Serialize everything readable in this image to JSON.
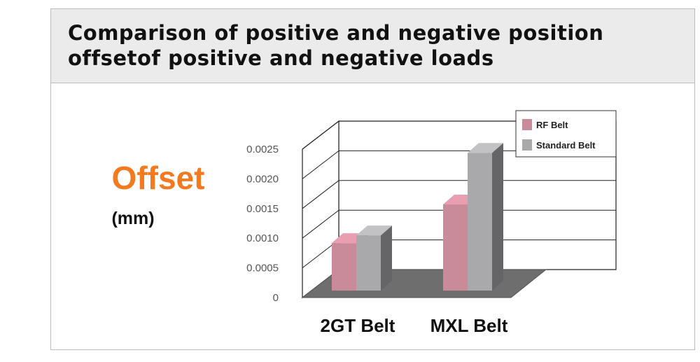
{
  "chart_data": {
    "type": "bar3d",
    "title": "Comparison of positive and negative position offsetof positive and negative loads",
    "ylabel": "Offset",
    "ylabel_unit": "(mm)",
    "categories": [
      "2GT Belt",
      "MXL Belt"
    ],
    "series": [
      {
        "name": "RF Belt",
        "color": "#c98a9a",
        "values": [
          0.0008,
          0.00145
        ]
      },
      {
        "name": "Standard Belt",
        "color": "#a9a9ab",
        "values": [
          0.00093,
          0.00232
        ]
      }
    ],
    "ylim": [
      0,
      0.0025
    ],
    "yticks": [
      0,
      0.0005,
      {
        "value": 0.001,
        "label": "0.0010"
      },
      0.0015,
      {
        "value": 0.002,
        "label": "0.0020"
      },
      0.0025
    ],
    "grid": true,
    "legend": "top-right"
  }
}
